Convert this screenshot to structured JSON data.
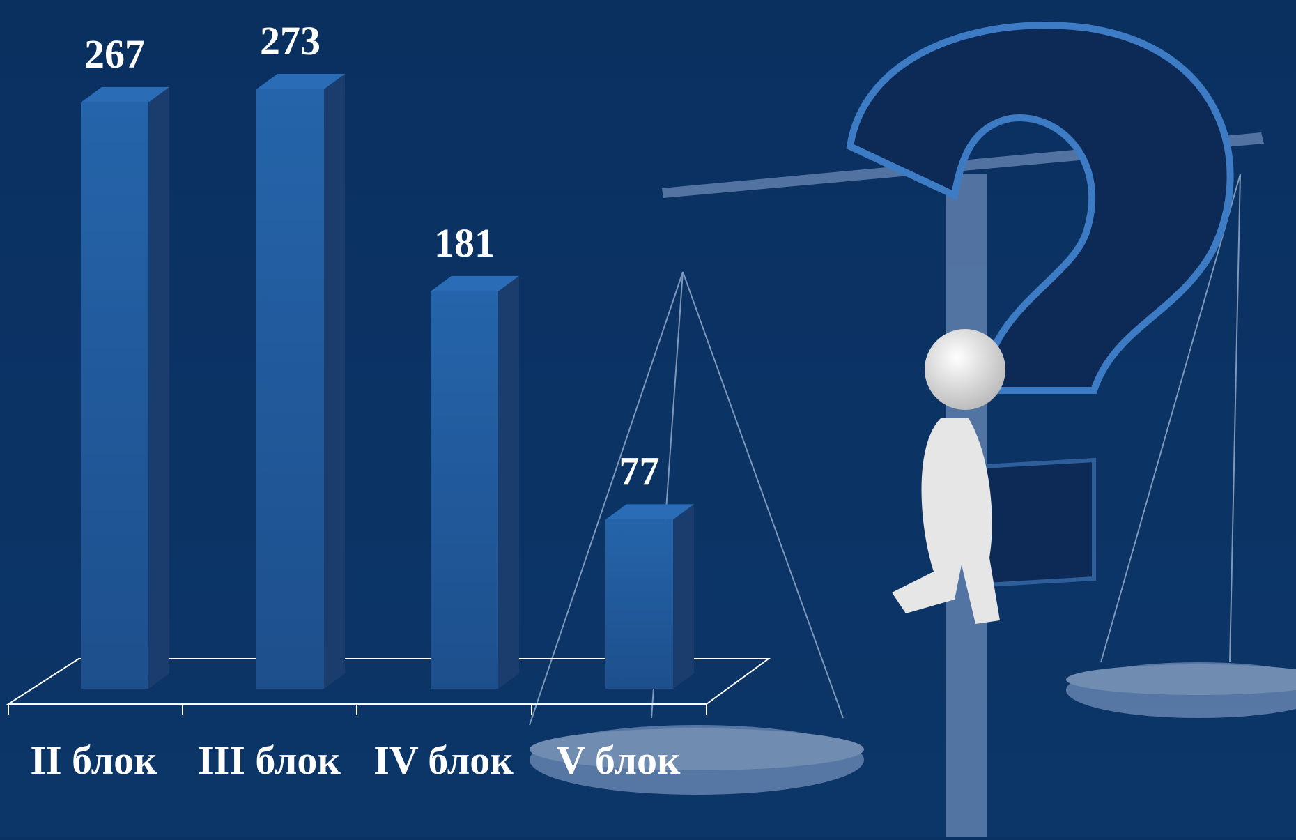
{
  "chart_data": {
    "type": "bar3d",
    "categories": [
      "II блок",
      "III блок",
      "IV блок",
      "V блок"
    ],
    "values": [
      267,
      273,
      181,
      77
    ],
    "color": "#2462a8"
  }
}
